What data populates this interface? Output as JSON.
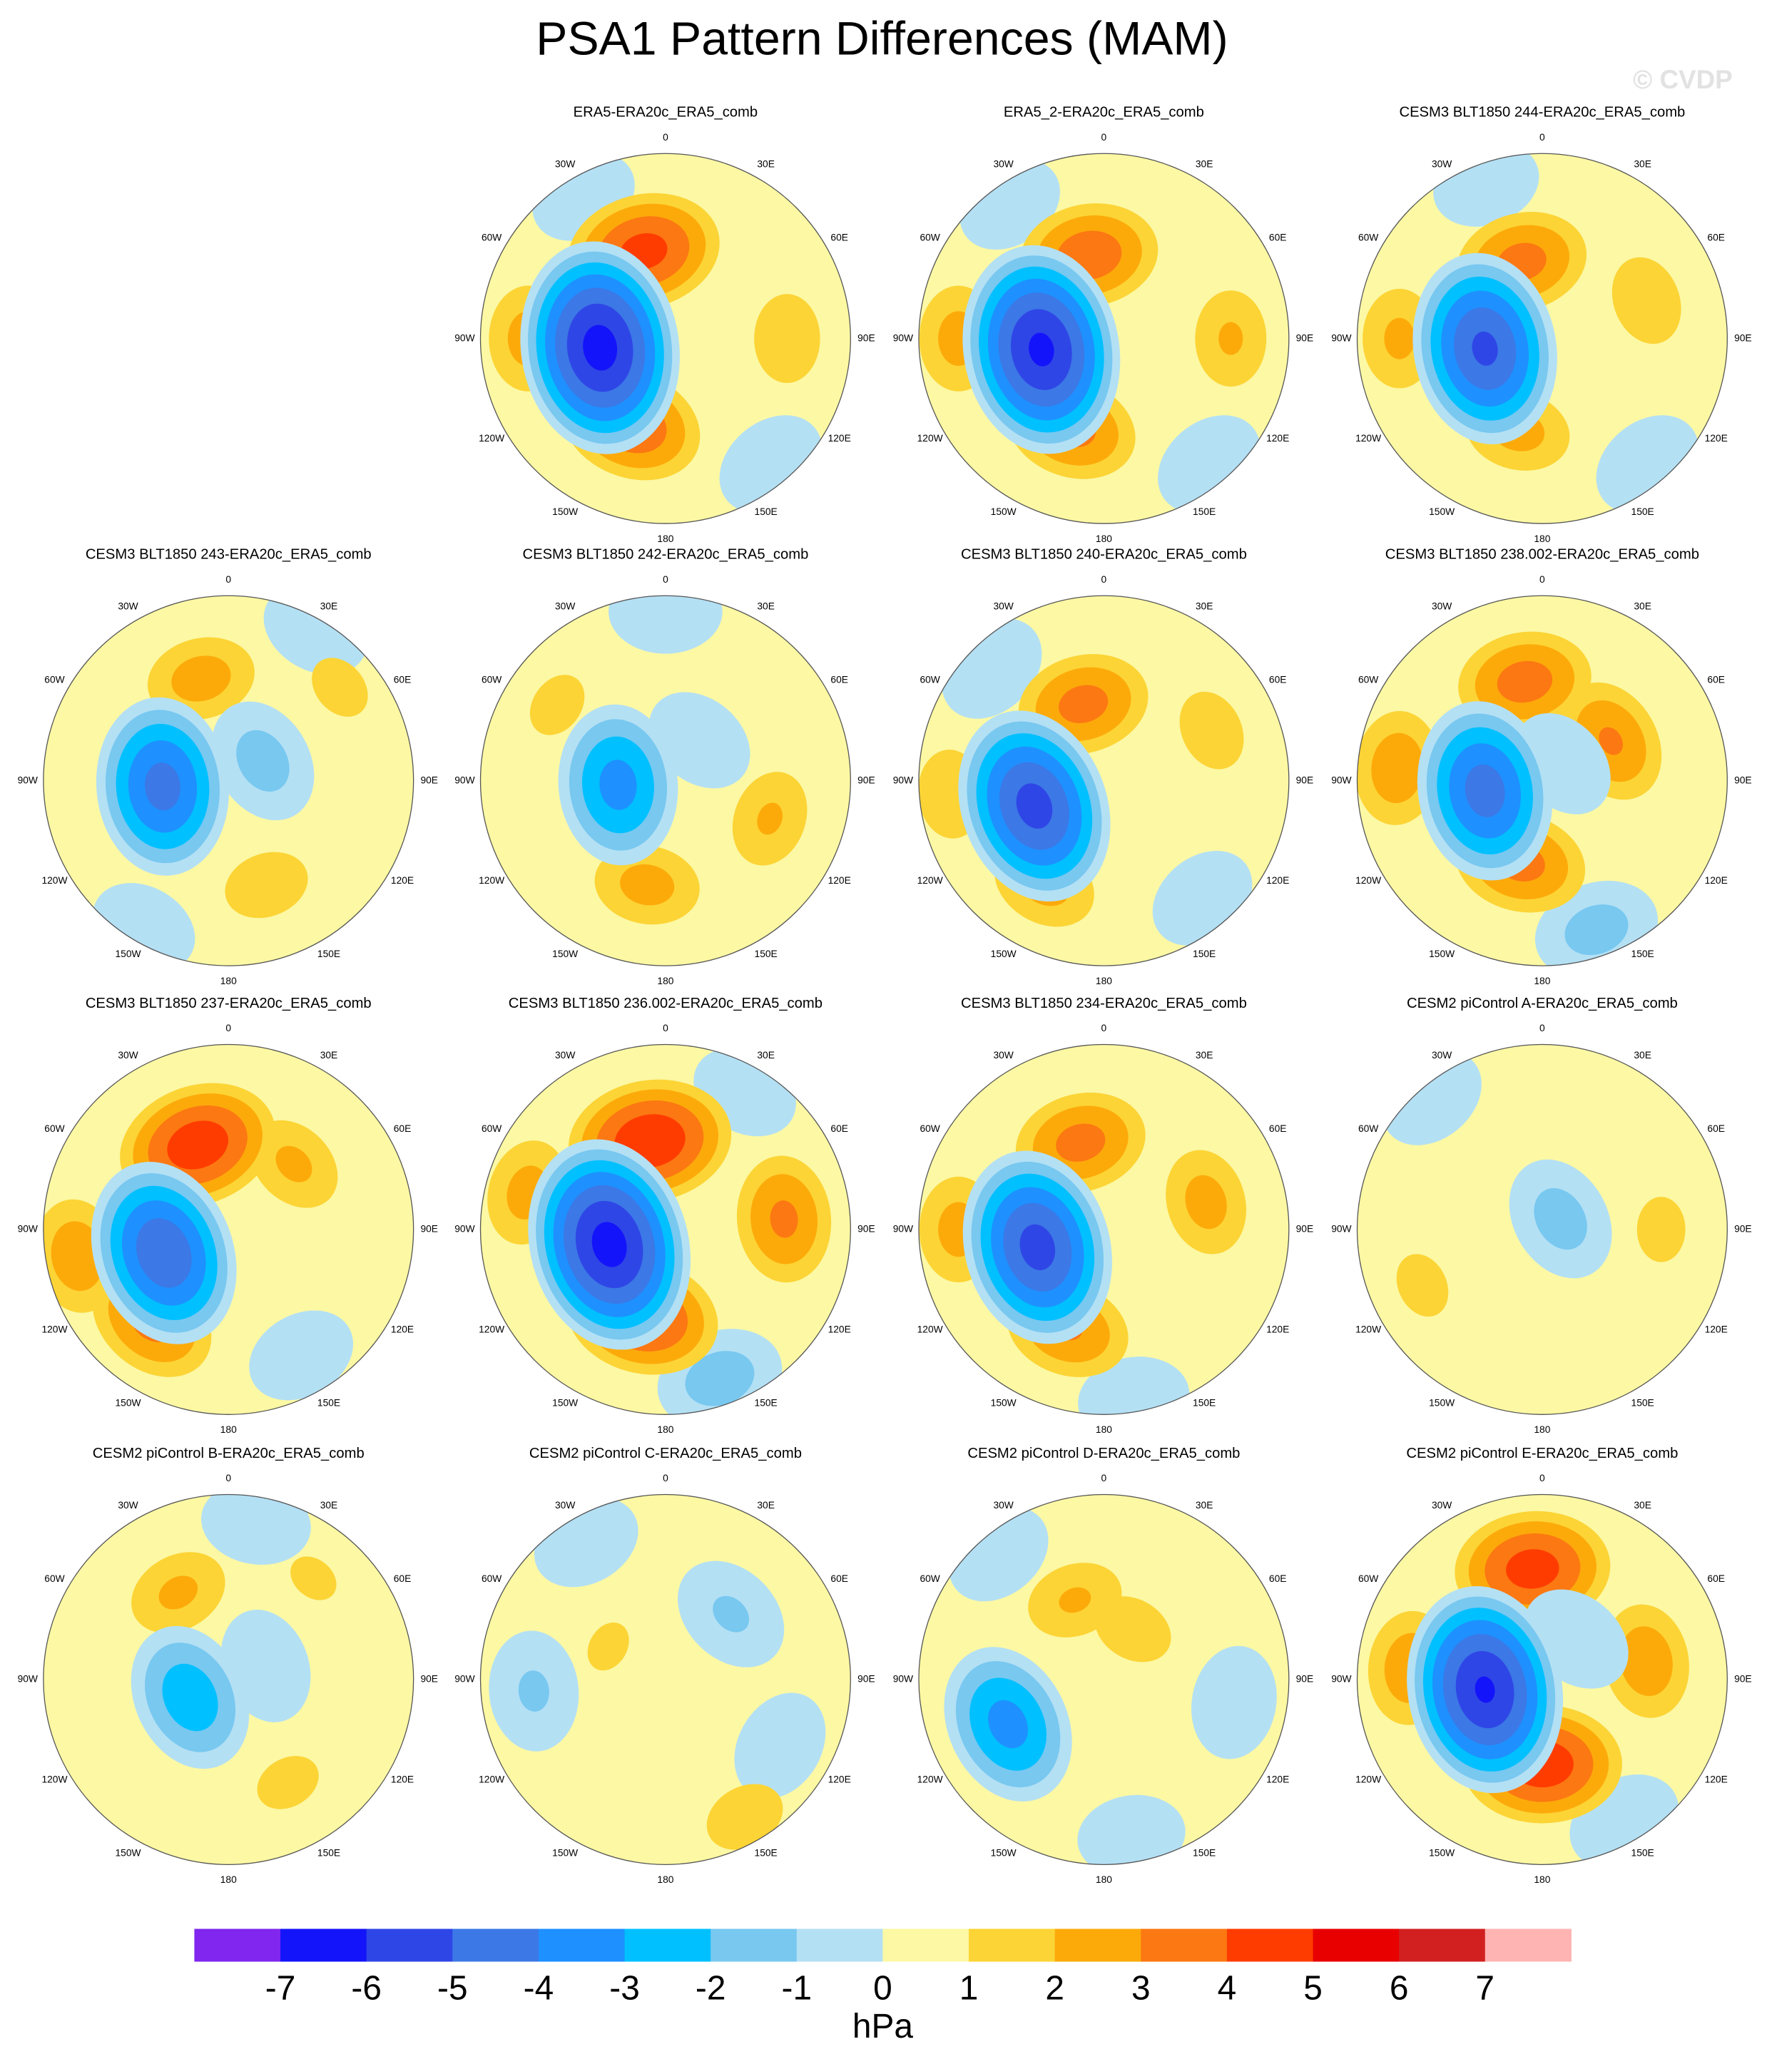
{
  "chart_data": {
    "type": "polar-contour",
    "title": "PSA1 Pattern Differences (MAM)",
    "watermark": "© CVDP",
    "lon_labels": [
      {
        "value": 0,
        "label": "0"
      },
      {
        "value": 30,
        "label": "30E"
      },
      {
        "value": 60,
        "label": "60E"
      },
      {
        "value": 90,
        "label": "90E"
      },
      {
        "value": 120,
        "label": "120E"
      },
      {
        "value": 150,
        "label": "150E"
      },
      {
        "value": 180,
        "label": "180"
      },
      {
        "value": -150,
        "label": "150W"
      },
      {
        "value": -120,
        "label": "120W"
      },
      {
        "value": -90,
        "label": "90W"
      },
      {
        "value": -60,
        "label": "60W"
      },
      {
        "value": -30,
        "label": "30W"
      }
    ],
    "max_colatitude": 70,
    "panels": [
      {
        "title": "ERA5-ERA20c_ERA5_comb",
        "centers": [
          {
            "lon": 140,
            "colat": 62,
            "peak": -0.8
          },
          {
            "lon": -30,
            "colat": 62,
            "peak": -0.5
          },
          {
            "lon": -90,
            "colat": 52,
            "peak": 2.5
          },
          {
            "lon": 90,
            "colat": 46,
            "peak": 2
          },
          {
            "lon": -14,
            "colat": 34,
            "peak": 4.5
          },
          {
            "lon": -158,
            "colat": 35,
            "peak": 4
          },
          {
            "lon": -98,
            "colat": 25,
            "peak": -6.5
          }
        ]
      },
      {
        "title": "ERA5_2-ERA20c_ERA5_comb",
        "centers": [
          {
            "lon": 140,
            "colat": 62,
            "peak": -0.8
          },
          {
            "lon": -35,
            "colat": 62,
            "peak": -0.5
          },
          {
            "lon": -90,
            "colat": 55,
            "peak": 2.5
          },
          {
            "lon": 90,
            "colat": 48,
            "peak": 2.2
          },
          {
            "lon": -10,
            "colat": 32,
            "peak": 3.8
          },
          {
            "lon": -160,
            "colat": 36,
            "peak": 3.5
          },
          {
            "lon": -100,
            "colat": 24,
            "peak": -6.3
          }
        ]
      },
      {
        "title": "CESM3 BLT1850 244-ERA20c_ERA5_comb",
        "centers": [
          {
            "lon": 140,
            "colat": 62,
            "peak": -0.8
          },
          {
            "lon": -20,
            "colat": 62,
            "peak": -0.5
          },
          {
            "lon": -90,
            "colat": 54,
            "peak": 2.3
          },
          {
            "lon": 70,
            "colat": 42,
            "peak": 2
          },
          {
            "lon": -15,
            "colat": 30,
            "peak": 3.5
          },
          {
            "lon": -165,
            "colat": 36,
            "peak": 2.5
          },
          {
            "lon": -100,
            "colat": 22,
            "peak": -5.3
          }
        ]
      },
      {
        "title": "CESM3 BLT1850 243-ERA20c_ERA5_comb",
        "centers": [
          {
            "lon": 30,
            "colat": 66,
            "peak": -0.6
          },
          {
            "lon": -150,
            "colat": 64,
            "peak": -0.5
          },
          {
            "lon": 50,
            "colat": 55,
            "peak": 1.5
          },
          {
            "lon": -15,
            "colat": 40,
            "peak": 2.6
          },
          {
            "lon": 160,
            "colat": 42,
            "peak": 1.9
          },
          {
            "lon": 60,
            "colat": 15,
            "peak": -1.5
          },
          {
            "lon": -95,
            "colat": 25,
            "peak": -4.5
          }
        ]
      },
      {
        "title": "CESM3 BLT1850 242-ERA20c_ERA5_comb",
        "centers": [
          {
            "lon": 0,
            "colat": 64,
            "peak": -0.8
          },
          {
            "lon": -55,
            "colat": 50,
            "peak": 1.5
          },
          {
            "lon": -170,
            "colat": 40,
            "peak": 2.5
          },
          {
            "lon": 110,
            "colat": 42,
            "peak": 2.2
          },
          {
            "lon": 40,
            "colat": 20,
            "peak": -0.7
          },
          {
            "lon": -95,
            "colat": 18,
            "peak": -3.5
          }
        ]
      },
      {
        "title": "CESM3 BLT1850 240-ERA20c_ERA5_comb",
        "centers": [
          {
            "lon": -45,
            "colat": 60,
            "peak": -0.8
          },
          {
            "lon": 140,
            "colat": 58,
            "peak": -0.6
          },
          {
            "lon": -95,
            "colat": 58,
            "peak": 2
          },
          {
            "lon": 65,
            "colat": 45,
            "peak": 1.8
          },
          {
            "lon": -15,
            "colat": 30,
            "peak": 3.5
          },
          {
            "lon": -150,
            "colat": 45,
            "peak": 2.5
          },
          {
            "lon": -110,
            "colat": 28,
            "peak": -5.5
          }
        ]
      },
      {
        "title": "CESM3 BLT1850 238.002-ERA20c_ERA5_comb",
        "centers": [
          {
            "lon": 160,
            "colat": 60,
            "peak": -1.5
          },
          {
            "lon": -85,
            "colat": 55,
            "peak": 2.8
          },
          {
            "lon": 60,
            "colat": 30,
            "peak": 3.2
          },
          {
            "lon": -10,
            "colat": 38,
            "peak": 3.6
          },
          {
            "lon": -165,
            "colat": 32,
            "peak": 3.5
          },
          {
            "lon": 50,
            "colat": 10,
            "peak": -0.7
          },
          {
            "lon": -100,
            "colat": 22,
            "peak": -4.6
          }
        ]
      },
      {
        "title": "CESM3 BLT1850 237-ERA20c_ERA5_comb",
        "centers": [
          {
            "lon": 150,
            "colat": 55,
            "peak": -0.6
          },
          {
            "lon": -100,
            "colat": 58,
            "peak": 2.8
          },
          {
            "lon": 45,
            "colat": 35,
            "peak": 2.3
          },
          {
            "lon": -20,
            "colat": 34,
            "peak": 4.8
          },
          {
            "lon": -140,
            "colat": 45,
            "peak": 3.5
          },
          {
            "lon": -110,
            "colat": 26,
            "peak": -5
          }
        ]
      },
      {
        "title": "CESM3 BLT1850 236.002-ERA20c_ERA5_comb",
        "centers": [
          {
            "lon": 160,
            "colat": 60,
            "peak": -1.6
          },
          {
            "lon": 30,
            "colat": 60,
            "peak": -0.5
          },
          {
            "lon": -75,
            "colat": 54,
            "peak": 2.5
          },
          {
            "lon": 85,
            "colat": 45,
            "peak": 3.3
          },
          {
            "lon": -10,
            "colat": 34,
            "peak": 5
          },
          {
            "lon": -165,
            "colat": 34,
            "peak": 4.5
          },
          {
            "lon": -105,
            "colat": 22,
            "peak": -6.5
          }
        ]
      },
      {
        "title": "CESM3 BLT1850 234-ERA20c_ERA5_comb",
        "centers": [
          {
            "lon": 170,
            "colat": 65,
            "peak": -0.7
          },
          {
            "lon": -90,
            "colat": 55,
            "peak": 2.5
          },
          {
            "lon": 75,
            "colat": 40,
            "peak": 2.5
          },
          {
            "lon": -15,
            "colat": 34,
            "peak": 3.5
          },
          {
            "lon": -160,
            "colat": 40,
            "peak": 3.2
          },
          {
            "lon": -105,
            "colat": 26,
            "peak": -5.5
          }
        ]
      },
      {
        "title": "CESM2 piControl A-ERA20c_ERA5_comb",
        "centers": [
          {
            "lon": -40,
            "colat": 65,
            "peak": -0.6
          },
          {
            "lon": 90,
            "colat": 45,
            "peak": 1.5
          },
          {
            "lon": -115,
            "colat": 50,
            "peak": 1.5
          },
          {
            "lon": 60,
            "colat": 8,
            "peak": -1.5
          }
        ]
      },
      {
        "title": "CESM2 piControl B-ERA20c_ERA5_comb",
        "centers": [
          {
            "lon": 10,
            "colat": 60,
            "peak": -0.6
          },
          {
            "lon": 40,
            "colat": 50,
            "peak": 1.3
          },
          {
            "lon": 150,
            "colat": 45,
            "peak": 1.5
          },
          {
            "lon": -30,
            "colat": 38,
            "peak": 2.3
          },
          {
            "lon": 70,
            "colat": 15,
            "peak": -0.9
          },
          {
            "lon": -115,
            "colat": 16,
            "peak": -2.8
          }
        ]
      },
      {
        "title": "CESM2 piControl C-ERA20c_ERA5_comb",
        "centers": [
          {
            "lon": -30,
            "colat": 60,
            "peak": -0.6
          },
          {
            "lon": 120,
            "colat": 50,
            "peak": -0.7
          },
          {
            "lon": 45,
            "colat": 35,
            "peak": -1.2
          },
          {
            "lon": -95,
            "colat": 50,
            "peak": -1.2
          },
          {
            "lon": -60,
            "colat": 25,
            "peak": 1.3
          },
          {
            "lon": 150,
            "colat": 60,
            "peak": 1.8
          }
        ]
      },
      {
        "title": "CESM2 piControl D-ERA20c_ERA5_comb",
        "centers": [
          {
            "lon": -40,
            "colat": 62,
            "peak": -0.6
          },
          {
            "lon": 170,
            "colat": 60,
            "peak": -0.5
          },
          {
            "lon": 100,
            "colat": 50,
            "peak": -0.8
          },
          {
            "lon": -20,
            "colat": 32,
            "peak": 2.2
          },
          {
            "lon": 30,
            "colat": 22,
            "peak": 1.8
          },
          {
            "lon": -115,
            "colat": 40,
            "peak": -3.5
          }
        ]
      },
      {
        "title": "CESM2 piControl E-ERA20c_ERA5_comb",
        "centers": [
          {
            "lon": 150,
            "colat": 62,
            "peak": -0.9
          },
          {
            "lon": -85,
            "colat": 50,
            "peak": 2.8
          },
          {
            "lon": 80,
            "colat": 40,
            "peak": 2.8
          },
          {
            "lon": -5,
            "colat": 42,
            "peak": 4.6
          },
          {
            "lon": 180,
            "colat": 32,
            "peak": 4.8
          },
          {
            "lon": 40,
            "colat": 20,
            "peak": -0.9
          },
          {
            "lon": -100,
            "colat": 22,
            "peak": -6.2
          }
        ]
      }
    ],
    "colorbar": {
      "label": "hPa",
      "colors": [
        "#8026ee",
        "#1414fa",
        "#2f46e6",
        "#3c78e6",
        "#1e90ff",
        "#00c0ff",
        "#78c8f0",
        "#b4e0f4",
        "#fcf8a4",
        "#fcd435",
        "#fcaa0a",
        "#fc7812",
        "#ff3c00",
        "#e80000",
        "#d22020",
        "#ffb4b4"
      ],
      "ticks": [
        -7,
        -6,
        -5,
        -4,
        -3,
        -2,
        -1,
        0,
        1,
        2,
        3,
        4,
        5,
        6,
        7
      ]
    }
  }
}
